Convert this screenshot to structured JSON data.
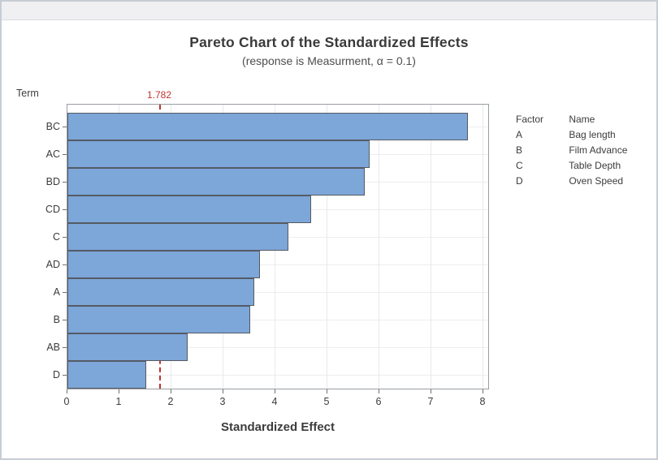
{
  "window": {
    "titlebar_title": ""
  },
  "header": {
    "title": "Pareto Chart of the Standardized Effects",
    "subtitle": "(response is Measurment, α = 0.1)"
  },
  "axes": {
    "y_title": "Term",
    "x_title": "Standardized Effect"
  },
  "reference": {
    "label": "1.782",
    "value": 1.782
  },
  "legend": {
    "col_factor": "Factor",
    "col_name": "Name",
    "rows": [
      {
        "factor": "A",
        "name": "Bag length"
      },
      {
        "factor": "B",
        "name": "Film Advance"
      },
      {
        "factor": "C",
        "name": "Table Depth"
      },
      {
        "factor": "D",
        "name": "Oven Speed"
      }
    ]
  },
  "chart_data": {
    "type": "bar",
    "orientation": "horizontal",
    "title": "Pareto Chart of the Standardized Effects",
    "subtitle": "(response is Measurment, α = 0.1)",
    "xlabel": "Standardized Effect",
    "ylabel": "Term",
    "categories": [
      "BC",
      "AC",
      "BD",
      "CD",
      "C",
      "AD",
      "A",
      "B",
      "AB",
      "D"
    ],
    "values": [
      7.7,
      5.82,
      5.72,
      4.68,
      4.25,
      3.7,
      3.6,
      3.52,
      2.32,
      1.52
    ],
    "xlim": [
      0,
      8.125
    ],
    "xticks": [
      0,
      1,
      2,
      3,
      4,
      5,
      6,
      7,
      8
    ],
    "reference_line": 1.782,
    "grid": true,
    "legend_position": "right",
    "colors": {
      "bar_fill": "#7da6d9",
      "bar_border": "#555b63",
      "reference": "#be3430",
      "frame": "#999ea4",
      "gridline": "#e9e9e9",
      "text": "#3c3c3c"
    }
  }
}
